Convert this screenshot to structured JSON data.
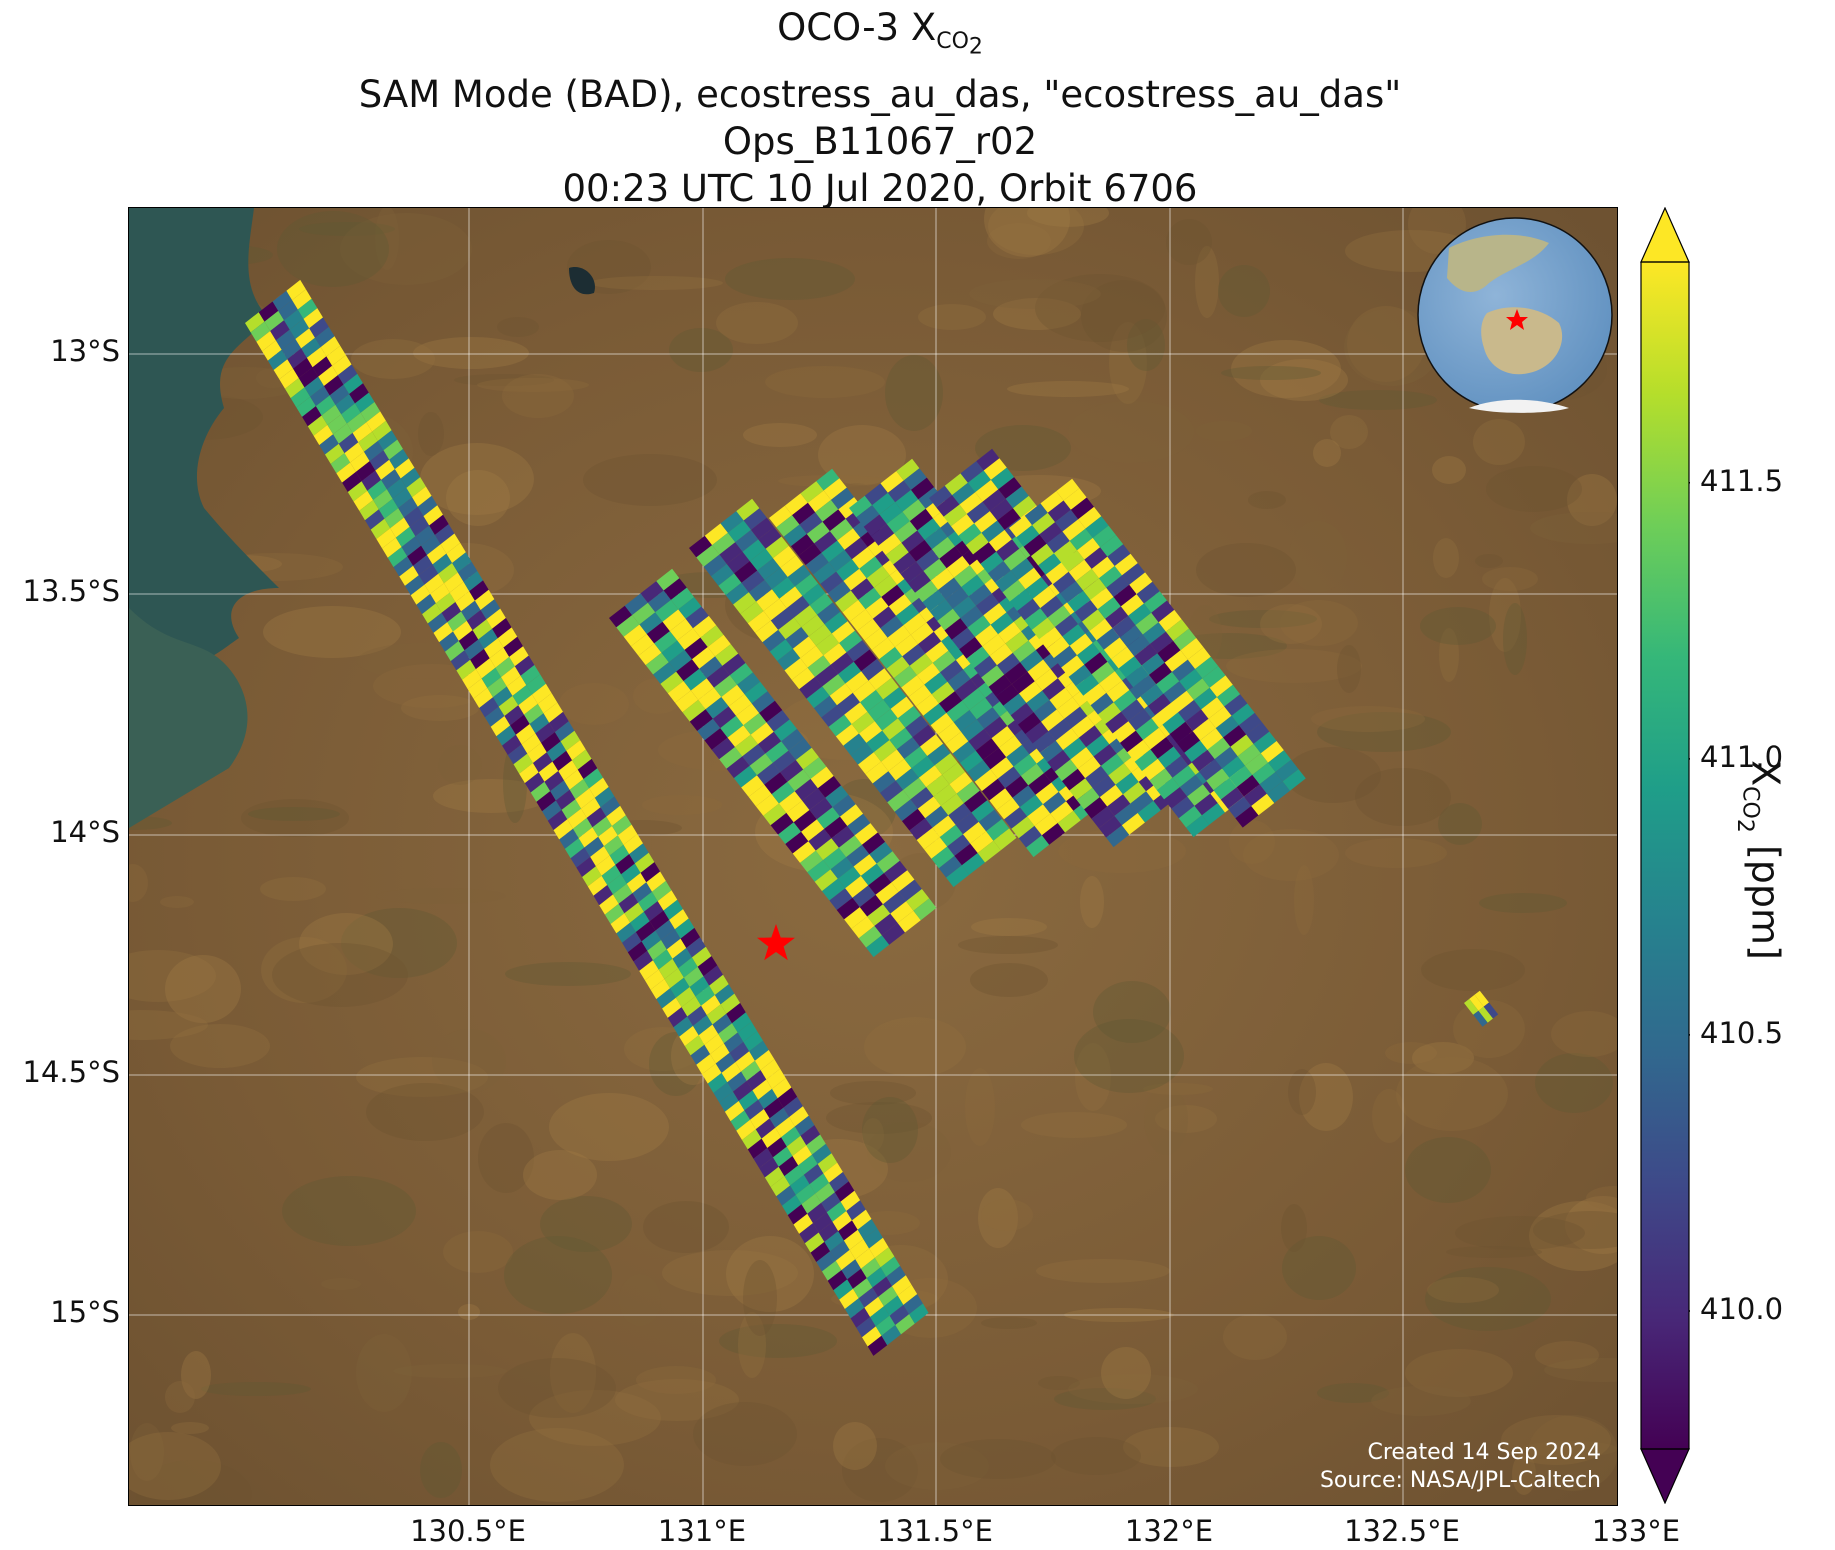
{
  "title": {
    "line1_prefix": "OCO-3 X",
    "line1_sub": "CO",
    "line1_subsub": "2",
    "line2": "SAM Mode (BAD), ecostress_au_das, \"ecostress_au_das\"",
    "line3": "Ops_B11067_r02",
    "line4": "00:23 UTC 10 Jul 2020, Orbit 6706"
  },
  "map": {
    "lon_ticks": [
      "130.5°E",
      "131°E",
      "131.5°E",
      "132°E",
      "132.5°E",
      "133°E"
    ],
    "lat_ticks": [
      "13°S",
      "13.5°S",
      "14°S",
      "14.5°S",
      "15°S"
    ],
    "target_marker": "red-star",
    "inset": "globe-inset-icon"
  },
  "credit": {
    "created": "Created 14 Sep 2024",
    "source": "Source: NASA/JPL-Caltech"
  },
  "colorbar": {
    "label_prefix": "X",
    "label_sub": "CO",
    "label_subsub": "2",
    "label_suffix": " [ppm]",
    "ticks": [
      "410.0",
      "410.5",
      "411.0",
      "411.5"
    ],
    "colormap": "viridis",
    "extend": "both",
    "range": [
      409.75,
      411.9
    ]
  },
  "colors": {
    "viridis": [
      "#440154",
      "#482878",
      "#3e4989",
      "#31688e",
      "#26828e",
      "#1f9e89",
      "#35b779",
      "#6ece58",
      "#b5de2b",
      "#fde725"
    ],
    "land": "#7a5a35",
    "ocean": "#2f5a55",
    "target_star": "#ff0000"
  }
}
